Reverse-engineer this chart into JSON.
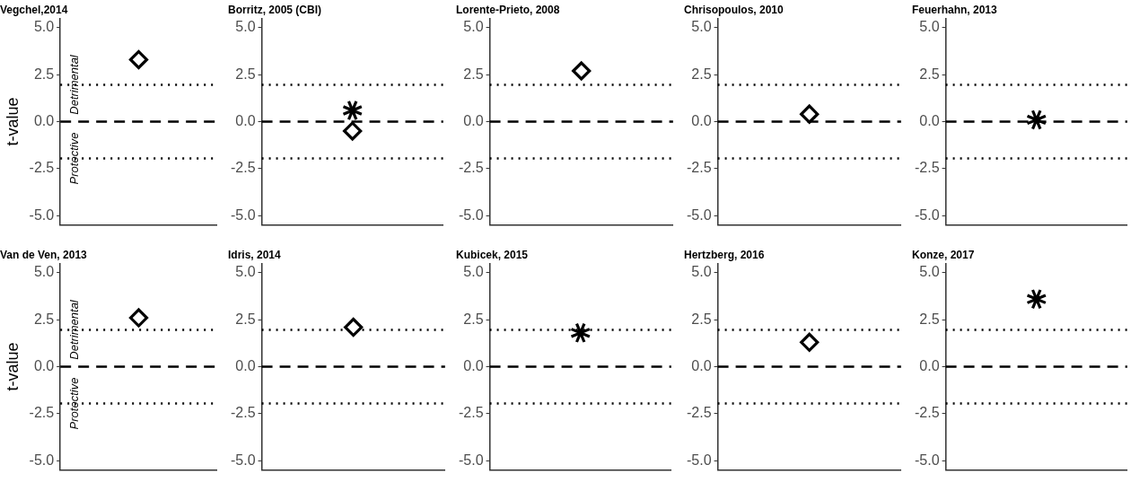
{
  "chart_data": [
    {
      "type": "scatter",
      "title": "Vegchel,2014",
      "ylabel": "t-value",
      "annotations": [
        "Detrimental",
        "Protective"
      ],
      "categories": [
        null
      ],
      "series": [
        {
          "color": "#000000",
          "marker": "diamond",
          "values": [
            3.3
          ]
        }
      ],
      "ylim": [
        -5.5,
        5.5
      ],
      "yticks": [
        {
          "value": -5,
          "label": "-5.0"
        },
        {
          "value": -2.5,
          "label": "-2.5"
        },
        {
          "value": 0,
          "label": "0.0"
        },
        {
          "value": 2.5,
          "label": "2.5"
        },
        {
          "value": 5,
          "label": "5.0"
        }
      ],
      "grid": false,
      "ref_lines": [
        {
          "axis": "y",
          "value": 1.96,
          "line_style": "dotted"
        },
        {
          "axis": "y",
          "value": 0,
          "line_style": "dashed"
        },
        {
          "axis": "y",
          "value": -1.96,
          "line_style": "dotted"
        }
      ]
    },
    {
      "type": "scatter",
      "title": "Borritz, 2005 (CBI)",
      "categories": [
        null
      ],
      "series": [
        {
          "color": "#000000",
          "marker": "cross",
          "values": [
            0.6
          ]
        },
        {
          "color": "#000000",
          "marker": "diamond",
          "values": [
            -0.5
          ]
        }
      ],
      "ylim": [
        -5.5,
        5.5
      ],
      "yticks": [
        {
          "value": -5,
          "label": "-5.0"
        },
        {
          "value": -2.5,
          "label": "-2.5"
        },
        {
          "value": 0,
          "label": "0.0"
        },
        {
          "value": 2.5,
          "label": "2.5"
        },
        {
          "value": 5,
          "label": "5.0"
        }
      ],
      "grid": false,
      "ref_lines": [
        {
          "axis": "y",
          "value": 1.96,
          "line_style": "dotted"
        },
        {
          "axis": "y",
          "value": 0,
          "line_style": "dashed"
        },
        {
          "axis": "y",
          "value": -1.96,
          "line_style": "dotted"
        }
      ]
    },
    {
      "type": "scatter",
      "title": "Lorente-Prieto, 2008",
      "categories": [
        null
      ],
      "series": [
        {
          "color": "#000000",
          "marker": "diamond",
          "values": [
            2.7
          ]
        }
      ],
      "ylim": [
        -5.5,
        5.5
      ],
      "yticks": [
        {
          "value": -5,
          "label": "-5.0"
        },
        {
          "value": -2.5,
          "label": "-2.5"
        },
        {
          "value": 0,
          "label": "0.0"
        },
        {
          "value": 2.5,
          "label": "2.5"
        },
        {
          "value": 5,
          "label": "5.0"
        }
      ],
      "grid": false,
      "ref_lines": [
        {
          "axis": "y",
          "value": 1.96,
          "line_style": "dotted"
        },
        {
          "axis": "y",
          "value": 0,
          "line_style": "dashed"
        },
        {
          "axis": "y",
          "value": -1.96,
          "line_style": "dotted"
        }
      ]
    },
    {
      "type": "scatter",
      "title": "Chrisopoulos, 2010",
      "categories": [
        null
      ],
      "series": [
        {
          "color": "#000000",
          "marker": "diamond",
          "values": [
            0.4
          ]
        }
      ],
      "ylim": [
        -5.5,
        5.5
      ],
      "yticks": [
        {
          "value": -5,
          "label": "-5.0"
        },
        {
          "value": -2.5,
          "label": "-2.5"
        },
        {
          "value": 0,
          "label": "0.0"
        },
        {
          "value": 2.5,
          "label": "2.5"
        },
        {
          "value": 5,
          "label": "5.0"
        }
      ],
      "grid": false,
      "ref_lines": [
        {
          "axis": "y",
          "value": 1.96,
          "line_style": "dotted"
        },
        {
          "axis": "y",
          "value": 0,
          "line_style": "dashed"
        },
        {
          "axis": "y",
          "value": -1.96,
          "line_style": "dotted"
        }
      ]
    },
    {
      "type": "scatter",
      "title": "Feuerhahn, 2013",
      "categories": [
        null
      ],
      "series": [
        {
          "color": "#000000",
          "marker": "cross",
          "values": [
            0.1
          ]
        }
      ],
      "ylim": [
        -5.5,
        5.5
      ],
      "yticks": [
        {
          "value": -5,
          "label": "-5.0"
        },
        {
          "value": -2.5,
          "label": "-2.5"
        },
        {
          "value": 0,
          "label": "0.0"
        },
        {
          "value": 2.5,
          "label": "2.5"
        },
        {
          "value": 5,
          "label": "5.0"
        }
      ],
      "grid": false,
      "ref_lines": [
        {
          "axis": "y",
          "value": 1.96,
          "line_style": "dotted"
        },
        {
          "axis": "y",
          "value": 0,
          "line_style": "dashed"
        },
        {
          "axis": "y",
          "value": -1.96,
          "line_style": "dotted"
        }
      ]
    },
    {
      "type": "scatter",
      "title": "Van de Ven, 2013",
      "ylabel": "t-value",
      "annotations": [
        "Detrimental",
        "Protective"
      ],
      "categories": [
        null
      ],
      "series": [
        {
          "color": "#000000",
          "marker": "diamond",
          "values": [
            2.6
          ]
        }
      ],
      "ylim": [
        -5.5,
        5.5
      ],
      "yticks": [
        {
          "value": -5,
          "label": "-5.0"
        },
        {
          "value": -2.5,
          "label": "-2.5"
        },
        {
          "value": 0,
          "label": "0.0"
        },
        {
          "value": 2.5,
          "label": "2.5"
        },
        {
          "value": 5,
          "label": "5.0"
        }
      ],
      "grid": false,
      "ref_lines": [
        {
          "axis": "y",
          "value": 1.96,
          "line_style": "dotted"
        },
        {
          "axis": "y",
          "value": 0,
          "line_style": "dashed"
        },
        {
          "axis": "y",
          "value": -1.96,
          "line_style": "dotted"
        }
      ]
    },
    {
      "type": "scatter",
      "title": "Idris, 2014",
      "categories": [
        null
      ],
      "series": [
        {
          "color": "#000000",
          "marker": "diamond",
          "values": [
            2.1
          ]
        }
      ],
      "ylim": [
        -5.5,
        5.5
      ],
      "yticks": [
        {
          "value": -5,
          "label": "-5.0"
        },
        {
          "value": -2.5,
          "label": "-2.5"
        },
        {
          "value": 0,
          "label": "0.0"
        },
        {
          "value": 2.5,
          "label": "2.5"
        },
        {
          "value": 5,
          "label": "5.0"
        }
      ],
      "grid": false,
      "ref_lines": [
        {
          "axis": "y",
          "value": 1.96,
          "line_style": "dotted"
        },
        {
          "axis": "y",
          "value": 0,
          "line_style": "dashed"
        },
        {
          "axis": "y",
          "value": -1.96,
          "line_style": "dotted"
        }
      ]
    },
    {
      "type": "scatter",
      "title": "Kubicek, 2015",
      "categories": [
        null
      ],
      "series": [
        {
          "color": "#000000",
          "marker": "cross",
          "values": [
            1.8
          ]
        }
      ],
      "ylim": [
        -5.5,
        5.5
      ],
      "yticks": [
        {
          "value": -5,
          "label": "-5.0"
        },
        {
          "value": -2.5,
          "label": "-2.5"
        },
        {
          "value": 0,
          "label": "0.0"
        },
        {
          "value": 2.5,
          "label": "2.5"
        },
        {
          "value": 5,
          "label": "5.0"
        }
      ],
      "grid": false,
      "ref_lines": [
        {
          "axis": "y",
          "value": 1.96,
          "line_style": "dotted"
        },
        {
          "axis": "y",
          "value": 0,
          "line_style": "dashed"
        },
        {
          "axis": "y",
          "value": -1.96,
          "line_style": "dotted"
        }
      ]
    },
    {
      "type": "scatter",
      "title": "Hertzberg, 2016",
      "categories": [
        null
      ],
      "series": [
        {
          "color": "#000000",
          "marker": "diamond",
          "values": [
            1.3
          ]
        }
      ],
      "ylim": [
        -5.5,
        5.5
      ],
      "yticks": [
        {
          "value": -5,
          "label": "-5.0"
        },
        {
          "value": -2.5,
          "label": "-2.5"
        },
        {
          "value": 0,
          "label": "0.0"
        },
        {
          "value": 2.5,
          "label": "2.5"
        },
        {
          "value": 5,
          "label": "5.0"
        }
      ],
      "grid": false,
      "ref_lines": [
        {
          "axis": "y",
          "value": 1.96,
          "line_style": "dotted"
        },
        {
          "axis": "y",
          "value": 0,
          "line_style": "dashed"
        },
        {
          "axis": "y",
          "value": -1.96,
          "line_style": "dotted"
        }
      ]
    },
    {
      "type": "scatter",
      "title": "Konze, 2017",
      "categories": [
        null
      ],
      "series": [
        {
          "color": "#000000",
          "marker": "cross",
          "values": [
            3.6
          ]
        }
      ],
      "ylim": [
        -5.5,
        5.5
      ],
      "yticks": [
        {
          "value": -5,
          "label": "-5.0"
        },
        {
          "value": -2.5,
          "label": "-2.5"
        },
        {
          "value": 0,
          "label": "0.0"
        },
        {
          "value": 2.5,
          "label": "2.5"
        },
        {
          "value": 5,
          "label": "5.0"
        }
      ],
      "grid": false,
      "ref_lines": [
        {
          "axis": "y",
          "value": 1.96,
          "line_style": "dotted"
        },
        {
          "axis": "y",
          "value": 0,
          "line_style": "dashed"
        },
        {
          "axis": "y",
          "value": -1.96,
          "line_style": "dotted"
        }
      ]
    }
  ]
}
